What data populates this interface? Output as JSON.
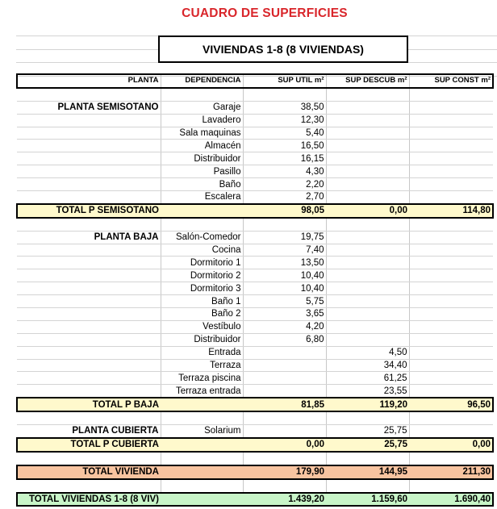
{
  "title": "CUADRO DE SUPERFICIES",
  "subtitle": "VIVIENDAS 1-8 (8 VIVIENDAS)",
  "colors": {
    "title": "#d9262b",
    "subtotal": "#fff9cc",
    "total_vivienda": "#f8c4a0",
    "total_all": "#c8f5c8"
  },
  "headers": [
    "PLANTA",
    "DEPENDENCIA",
    "SUP UTIL m²",
    "SUP DESCUB m²",
    "SUP CONST m²"
  ],
  "rows": [
    {
      "t": "empty",
      "c": [
        "",
        "",
        "",
        "",
        ""
      ]
    },
    {
      "t": "group",
      "c": [
        "PLANTA SEMISOTANO",
        "Garaje",
        "38,50",
        "",
        ""
      ]
    },
    {
      "t": "item",
      "c": [
        "",
        "Lavadero",
        "12,30",
        "",
        ""
      ]
    },
    {
      "t": "item",
      "c": [
        "",
        "Sala maquinas",
        "5,40",
        "",
        ""
      ]
    },
    {
      "t": "item",
      "c": [
        "",
        "Almacén",
        "16,50",
        "",
        ""
      ]
    },
    {
      "t": "item",
      "c": [
        "",
        "Distribuidor",
        "16,15",
        "",
        ""
      ]
    },
    {
      "t": "item",
      "c": [
        "",
        "Pasillo",
        "4,30",
        "",
        ""
      ]
    },
    {
      "t": "item",
      "c": [
        "",
        "Baño",
        "2,20",
        "",
        ""
      ]
    },
    {
      "t": "item",
      "c": [
        "",
        "Escalera",
        "2,70",
        "",
        ""
      ]
    },
    {
      "t": "sub",
      "c": [
        "TOTAL P SEMISOTANO",
        "",
        "98,05",
        "0,00",
        "114,80"
      ]
    },
    {
      "t": "empty",
      "c": [
        "",
        "",
        "",
        "",
        ""
      ]
    },
    {
      "t": "group",
      "c": [
        "PLANTA BAJA",
        "Salón-Comedor",
        "19,75",
        "",
        ""
      ]
    },
    {
      "t": "item",
      "c": [
        "",
        "Cocina",
        "7,40",
        "",
        ""
      ]
    },
    {
      "t": "item",
      "c": [
        "",
        "Dormitorio 1",
        "13,50",
        "",
        ""
      ]
    },
    {
      "t": "item",
      "c": [
        "",
        "Dormitorio 2",
        "10,40",
        "",
        ""
      ]
    },
    {
      "t": "item",
      "c": [
        "",
        "Dormitorio 3",
        "10,40",
        "",
        ""
      ]
    },
    {
      "t": "item",
      "c": [
        "",
        "Baño 1",
        "5,75",
        "",
        ""
      ]
    },
    {
      "t": "item",
      "c": [
        "",
        "Baño 2",
        "3,65",
        "",
        ""
      ]
    },
    {
      "t": "item",
      "c": [
        "",
        "Vestíbulo",
        "4,20",
        "",
        ""
      ]
    },
    {
      "t": "item",
      "c": [
        "",
        "Distribuidor",
        "6,80",
        "",
        ""
      ]
    },
    {
      "t": "item",
      "c": [
        "",
        "Entrada",
        "",
        "4,50",
        ""
      ]
    },
    {
      "t": "item",
      "c": [
        "",
        "Terraza",
        "",
        "34,40",
        ""
      ]
    },
    {
      "t": "item",
      "c": [
        "",
        "Terraza piscina",
        "",
        "61,25",
        ""
      ]
    },
    {
      "t": "item",
      "c": [
        "",
        "Terraza entrada",
        "",
        "23,55",
        ""
      ]
    },
    {
      "t": "sub",
      "c": [
        "TOTAL P BAJA",
        "",
        "81,85",
        "119,20",
        "96,50"
      ]
    },
    {
      "t": "empty",
      "c": [
        "",
        "",
        "",
        "",
        ""
      ]
    },
    {
      "t": "group",
      "c": [
        "PLANTA CUBIERTA",
        "Solarium",
        "",
        "25,75",
        ""
      ]
    },
    {
      "t": "sub",
      "c": [
        "TOTAL P CUBIERTA",
        "",
        "0,00",
        "25,75",
        "0,00"
      ]
    },
    {
      "t": "empty",
      "c": [
        "",
        "",
        "",
        "",
        ""
      ]
    },
    {
      "t": "viv",
      "c": [
        "TOTAL VIVIENDA",
        "",
        "179,90",
        "144,95",
        "211,30"
      ]
    },
    {
      "t": "empty",
      "c": [
        "",
        "",
        "",
        "",
        ""
      ]
    },
    {
      "t": "all",
      "c": [
        "TOTAL VIVIENDAS 1-8 (8 VIV)",
        "",
        "1.439,20",
        "1.159,60",
        "1.690,40"
      ]
    }
  ]
}
